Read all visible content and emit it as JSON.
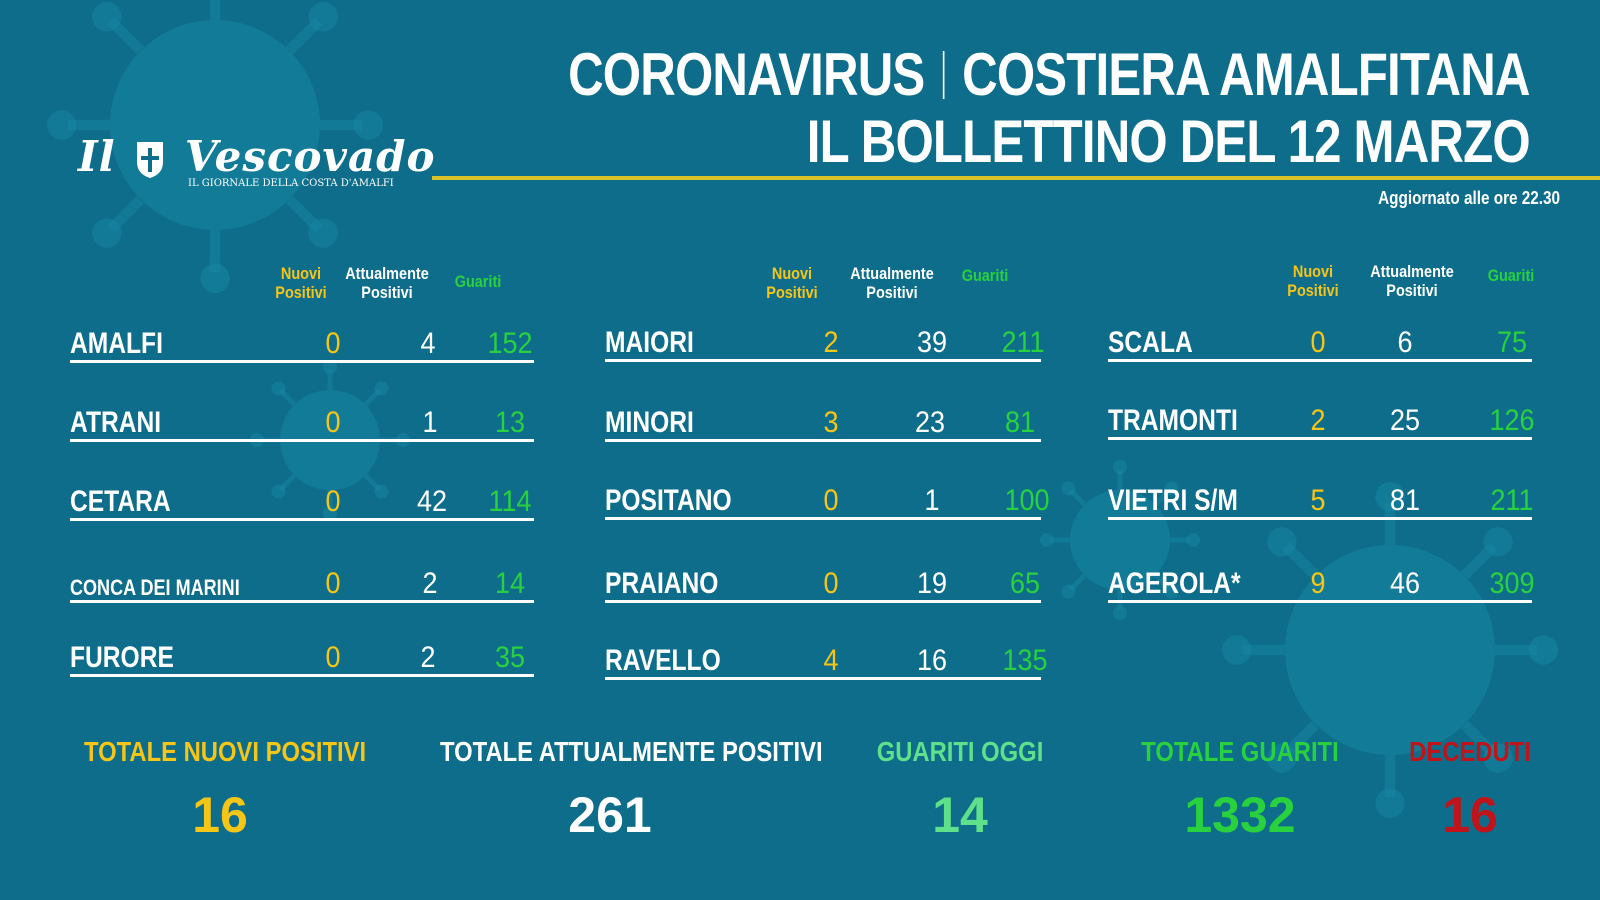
{
  "header": {
    "title_part1": "CORONAVIRUS",
    "title_part2": "COSTIERA AMALFITANA",
    "subtitle": "IL BOLLETTINO DEL 12 MARZO",
    "updated": "Aggiornato alle ore 22.30"
  },
  "logo": {
    "name_left": "Il",
    "name_right": "Vescovado",
    "tagline": "IL GIORNALE DELLA COSTA D'AMALFI"
  },
  "columns": {
    "nuovi_1": "Nuovi",
    "nuovi_2": "Positivi",
    "attuali_1": "Attualmente",
    "attuali_2": "Positivi",
    "guariti": "Guariti"
  },
  "colors": {
    "background": "#0d6d8a",
    "yellow": "#f5c518",
    "green": "#29d13f",
    "light_green": "#5fe08a",
    "red": "#c0141a"
  },
  "groups": [
    {
      "rows": [
        {
          "name": "AMALFI",
          "nuovi": "0",
          "attuali": "4",
          "guariti": "152"
        },
        {
          "name": "ATRANI",
          "nuovi": "0",
          "attuali": "1",
          "guariti": "13"
        },
        {
          "name": "CETARA",
          "nuovi": "0",
          "attuali": "42",
          "guariti": "114"
        },
        {
          "name": "CONCA DEI MARINI",
          "nuovi": "0",
          "attuali": "2",
          "guariti": "14"
        },
        {
          "name": "FURORE",
          "nuovi": "0",
          "attuali": "2",
          "guariti": "35"
        }
      ]
    },
    {
      "rows": [
        {
          "name": "MAIORI",
          "nuovi": "2",
          "attuali": "39",
          "guariti": "211"
        },
        {
          "name": "MINORI",
          "nuovi": "3",
          "attuali": "23",
          "guariti": "81"
        },
        {
          "name": "POSITANO",
          "nuovi": "0",
          "attuali": "1",
          "guariti": "100"
        },
        {
          "name": "PRAIANO",
          "nuovi": "0",
          "attuali": "19",
          "guariti": "65"
        },
        {
          "name": "RAVELLO",
          "nuovi": "4",
          "attuali": "16",
          "guariti": "135"
        }
      ]
    },
    {
      "rows": [
        {
          "name": "SCALA",
          "nuovi": "0",
          "attuali": "6",
          "guariti": "75"
        },
        {
          "name": "TRAMONTI",
          "nuovi": "2",
          "attuali": "25",
          "guariti": "126"
        },
        {
          "name": "VIETRI S/M",
          "nuovi": "5",
          "attuali": "81",
          "guariti": "211"
        },
        {
          "name": "AGEROLA*",
          "nuovi": "9",
          "attuali": "46",
          "guariti": "309"
        }
      ]
    }
  ],
  "totals": {
    "nuovi_label": "TOTALE NUOVI POSITIVI",
    "nuovi_value": "16",
    "attuali_label": "TOTALE ATTUALMENTE POSITIVI",
    "attuali_value": "261",
    "guariti_oggi_label": "GUARITI OGGI",
    "guariti_oggi_value": "14",
    "guariti_label": "TOTALE GUARITI",
    "guariti_value": "1332",
    "deceduti_label": "DECEDUTI",
    "deceduti_value": "16"
  }
}
